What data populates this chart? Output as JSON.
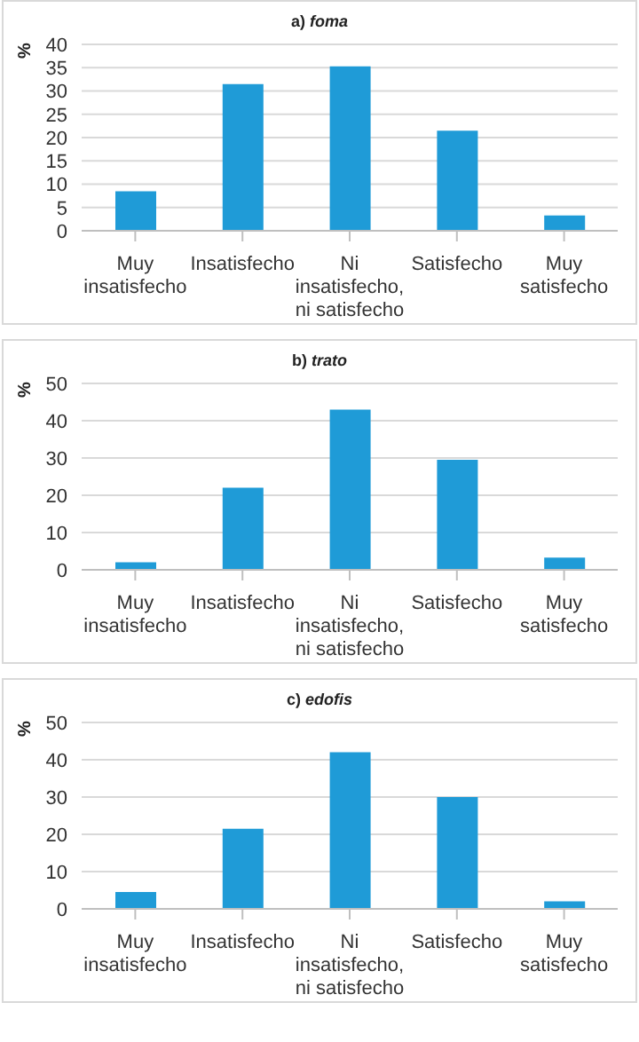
{
  "chart_data": [
    {
      "type": "bar",
      "title": "a) foma",
      "ylabel": "%",
      "categories": [
        "Muy\ninsatisfecho",
        "Insatisfecho",
        "Ni\ninsatisfecho,\nni satisfecho",
        "Satisfecho",
        "Muy\nsatisfecho"
      ],
      "values": [
        8.5,
        31.5,
        35.3,
        21.5,
        3.3
      ],
      "color": "#1f9bd7",
      "ylim": [
        0,
        40
      ],
      "yticks": [
        0,
        5,
        10,
        15,
        20,
        25,
        30,
        35,
        40
      ],
      "grid": "y",
      "legend": false
    },
    {
      "type": "bar",
      "title": "b) trato",
      "ylabel": "%",
      "categories": [
        "Muy\ninsatisfecho",
        "Insatisfecho",
        "Ni\ninsatisfecho,\nni satisfecho",
        "Satisfecho",
        "Muy\nsatisfecho"
      ],
      "values": [
        2,
        22,
        43,
        29.5,
        3.3
      ],
      "color": "#1f9bd7",
      "ylim": [
        0,
        50
      ],
      "yticks": [
        0,
        10,
        20,
        30,
        40,
        50
      ],
      "grid": "y",
      "legend": false
    },
    {
      "type": "bar",
      "title": "c) edofis",
      "ylabel": "%",
      "categories": [
        "Muy\ninsatisfecho",
        "Insatisfecho",
        "Ni\ninsatisfecho,\nni satisfecho",
        "Satisfecho",
        "Muy\nsatisfecho"
      ],
      "values": [
        4.5,
        21.5,
        42,
        30,
        2
      ],
      "color": "#1f9bd7",
      "ylim": [
        0,
        50
      ],
      "yticks": [
        0,
        10,
        20,
        30,
        40,
        50
      ],
      "grid": "y",
      "legend": false
    }
  ]
}
